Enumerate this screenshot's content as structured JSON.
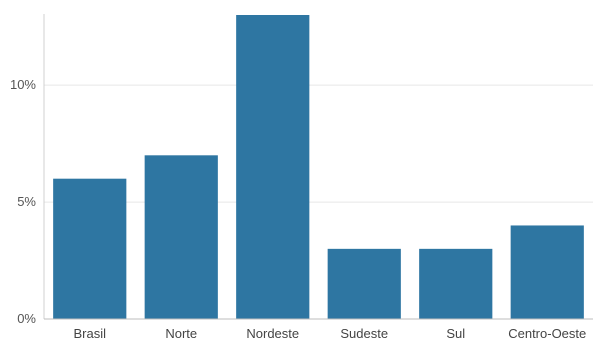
{
  "chart_data": {
    "type": "bar",
    "title": "",
    "xlabel": "",
    "ylabel": "",
    "categories": [
      "Brasil",
      "Norte",
      "Nordeste",
      "Sudeste",
      "Sul",
      "Centro-Oeste"
    ],
    "values": [
      6,
      7,
      13,
      3,
      3,
      4
    ],
    "ylim": [
      0,
      13
    ],
    "yticks": [
      0,
      5,
      10
    ],
    "ytick_labels": [
      "0%",
      "5%",
      "10%"
    ],
    "grid": true,
    "legend": "none",
    "bar_color": "#2e76a2"
  }
}
